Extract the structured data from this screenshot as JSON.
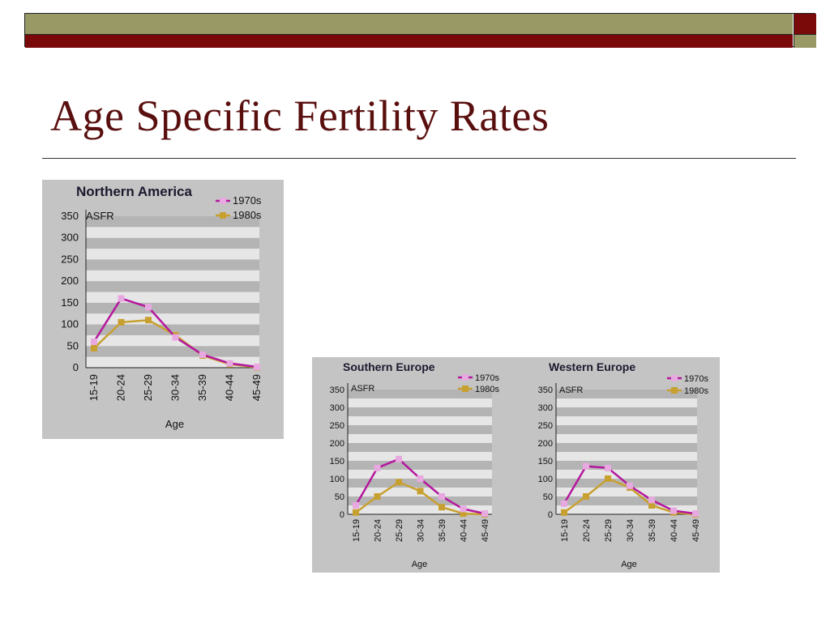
{
  "slide": {
    "title": "Age Specific Fertility Rates"
  },
  "colors": {
    "bar_olive": "#999966",
    "bar_maroon": "#7a0a0a",
    "title": "#5a0f0f",
    "panel_bg": "#c4c4c4",
    "series_1970s": "#b5179e",
    "series_1970s_marker": "#e8a8e0",
    "series_1980s": "#c8a030",
    "series_1980s_marker": "#c8a030"
  },
  "chart_data": [
    {
      "type": "line",
      "title": "Northern America",
      "ylabel": "ASFR",
      "xlabel": "Age",
      "categories": [
        "15-19",
        "20-24",
        "25-29",
        "30-34",
        "35-39",
        "40-44",
        "45-49"
      ],
      "yticks": [
        0,
        50,
        100,
        150,
        200,
        250,
        300,
        350
      ],
      "ylim": [
        0,
        350
      ],
      "series": [
        {
          "name": "1970s",
          "values": [
            60,
            160,
            140,
            70,
            30,
            10,
            2
          ]
        },
        {
          "name": "1980s",
          "values": [
            45,
            105,
            110,
            75,
            28,
            8,
            1
          ]
        }
      ],
      "legend": "top-right",
      "grid": "horizontal bands"
    },
    {
      "type": "line",
      "title": "Southern Europe",
      "ylabel": "ASFR",
      "xlabel": "Age",
      "categories": [
        "15-19",
        "20-24",
        "25-29",
        "30-34",
        "35-39",
        "40-44",
        "45-49"
      ],
      "yticks": [
        0,
        50,
        100,
        150,
        200,
        250,
        300,
        350
      ],
      "ylim": [
        0,
        350
      ],
      "series": [
        {
          "name": "1970s",
          "values": [
            25,
            130,
            155,
            100,
            50,
            15,
            2
          ]
        },
        {
          "name": "1980s",
          "values": [
            5,
            50,
            90,
            65,
            20,
            2,
            0
          ]
        }
      ],
      "legend": "top-right",
      "grid": "horizontal bands"
    },
    {
      "type": "line",
      "title": "Western Europe",
      "ylabel": "ASFR",
      "xlabel": "Age",
      "categories": [
        "15-19",
        "20-24",
        "25-29",
        "30-34",
        "35-39",
        "40-44",
        "45-49"
      ],
      "yticks": [
        0,
        50,
        100,
        150,
        200,
        250,
        300,
        350
      ],
      "ylim": [
        0,
        350
      ],
      "series": [
        {
          "name": "1970s",
          "values": [
            30,
            135,
            130,
            80,
            40,
            10,
            2
          ]
        },
        {
          "name": "1980s",
          "values": [
            5,
            50,
            100,
            75,
            25,
            5,
            0
          ]
        }
      ],
      "legend": "top-right",
      "grid": "horizontal bands"
    }
  ]
}
